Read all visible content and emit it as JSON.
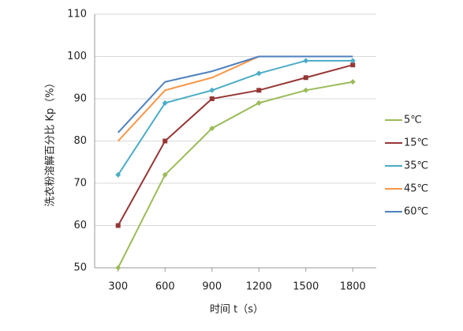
{
  "chart_data": {
    "type": "line",
    "x": [
      300,
      600,
      900,
      1200,
      1500,
      1800
    ],
    "xlim": [
      150,
      1950
    ],
    "xticks": [
      300,
      600,
      900,
      1200,
      1500,
      1800
    ],
    "ylim": [
      50,
      110
    ],
    "yticks": [
      50,
      60,
      70,
      80,
      90,
      100,
      110
    ],
    "xlabel": "时间 t（s）",
    "ylabel": "洗衣粉溶解百分比 Kp（%）",
    "grid": true,
    "legend": "right",
    "series": [
      {
        "name": "5℃",
        "color": "#9bbb59",
        "values": [
          50,
          72,
          83,
          89,
          92,
          94
        ]
      },
      {
        "name": "15℃",
        "color": "#953735",
        "values": [
          60,
          80,
          90,
          92,
          95,
          98
        ]
      },
      {
        "name": "35℃",
        "color": "#4bacc6",
        "values": [
          72,
          89,
          92,
          96,
          99,
          99
        ]
      },
      {
        "name": "45℃",
        "color": "#f79646",
        "values": [
          80,
          92,
          95,
          100,
          100,
          100
        ]
      },
      {
        "name": "60℃",
        "color": "#4f81bd",
        "values": [
          82,
          94,
          96.5,
          100,
          100,
          100
        ]
      }
    ]
  }
}
